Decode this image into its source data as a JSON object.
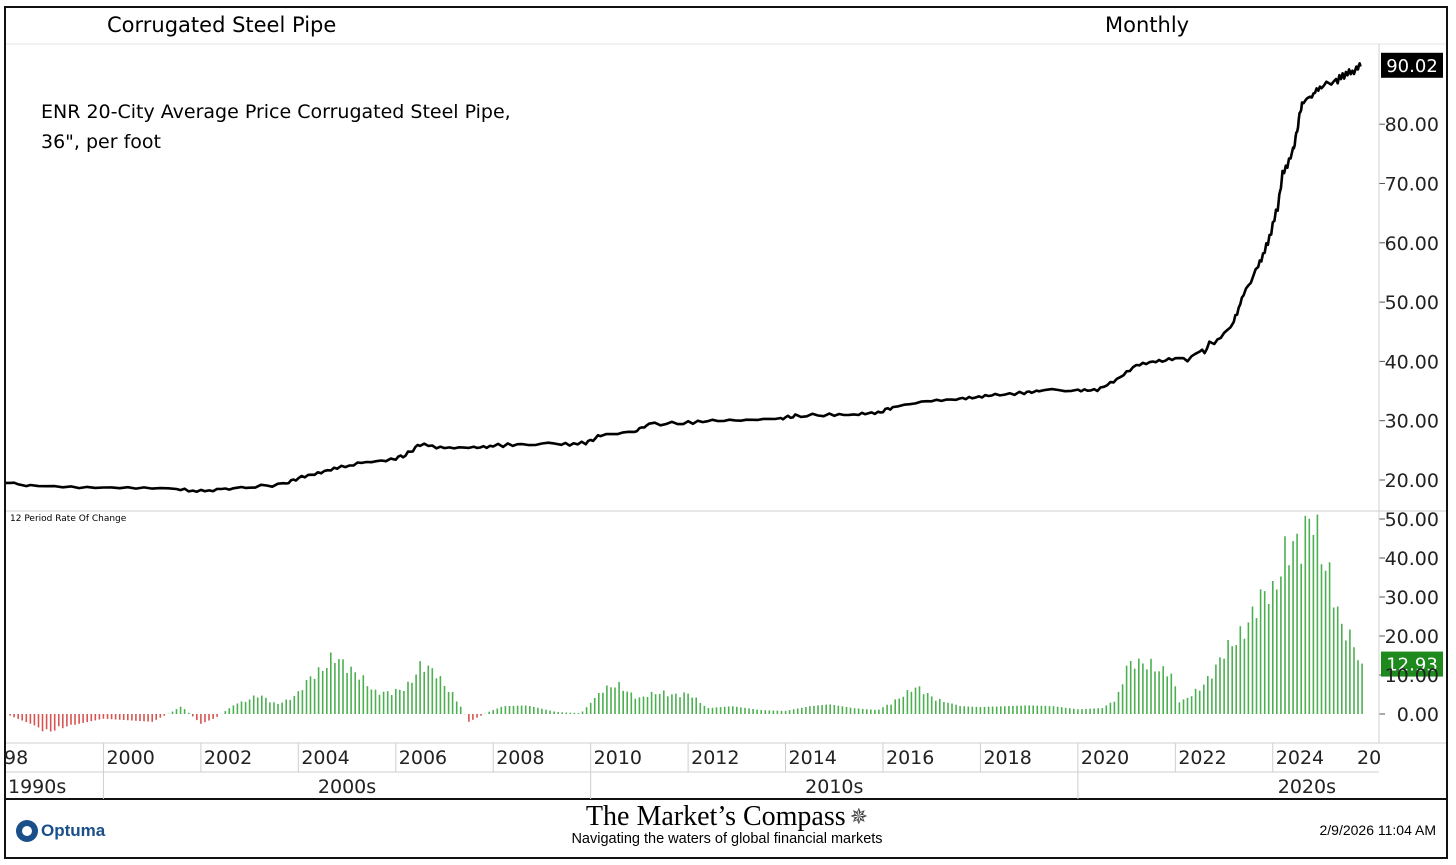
{
  "header": {
    "title": "Corrugated Steel Pipe",
    "period": "Monthly"
  },
  "description": {
    "line1": "ENR 20-City Average Price Corrugated Steel Pipe,",
    "line2": "36\", per foot"
  },
  "indicator_label": "12 Period Rate Of Change",
  "footer": {
    "vendor": "Optuma",
    "brand_title": "The Market’s Compass",
    "brand_subtitle": "Navigating the waters of global financial markets",
    "timestamp": "2/9/2026 11:04 AM",
    "vendor_icon": "optuma-logo-icon",
    "brand_icon": "compass-icon"
  },
  "chart_data": [
    {
      "type": "line",
      "title": "ENR 20-City Average Price Corrugated Steel Pipe, 36\", per foot",
      "ylim": [
        16,
        92
      ],
      "yticks": [
        "20.00",
        "30.00",
        "40.00",
        "50.00",
        "60.00",
        "70.00",
        "80.00"
      ],
      "last_value": 90.02,
      "last_value_label": "90.02",
      "color": "#000000",
      "points": [
        [
          1998.0,
          19.6
        ],
        [
          1998.5,
          19.0
        ],
        [
          1999.5,
          18.6
        ],
        [
          2000.5,
          18.5
        ],
        [
          2001.5,
          18.4
        ],
        [
          2002.0,
          18.1
        ],
        [
          2002.5,
          18.5
        ],
        [
          2003.0,
          18.8
        ],
        [
          2003.7,
          19.3
        ],
        [
          2004.0,
          20.3
        ],
        [
          2004.4,
          21.0
        ],
        [
          2004.8,
          22.0
        ],
        [
          2005.3,
          22.9
        ],
        [
          2005.9,
          23.4
        ],
        [
          2006.2,
          24.2
        ],
        [
          2006.5,
          26.0
        ],
        [
          2007.0,
          25.4
        ],
        [
          2007.6,
          25.5
        ],
        [
          2008.0,
          25.8
        ],
        [
          2008.6,
          26.0
        ],
        [
          2009.4,
          26.0
        ],
        [
          2009.9,
          26.2
        ],
        [
          2010.2,
          27.5
        ],
        [
          2010.9,
          28.2
        ],
        [
          2011.2,
          29.4
        ],
        [
          2011.9,
          29.6
        ],
        [
          2012.5,
          30.0
        ],
        [
          2013.2,
          30.1
        ],
        [
          2013.9,
          30.4
        ],
        [
          2014.2,
          30.8
        ],
        [
          2014.9,
          31.0
        ],
        [
          2015.5,
          31.0
        ],
        [
          2015.9,
          31.3
        ],
        [
          2016.2,
          32.3
        ],
        [
          2016.9,
          33.3
        ],
        [
          2017.5,
          33.6
        ],
        [
          2017.9,
          33.8
        ],
        [
          2018.3,
          34.3
        ],
        [
          2018.9,
          34.7
        ],
        [
          2019.2,
          35.0
        ],
        [
          2020.0,
          35.2
        ],
        [
          2020.4,
          35.3
        ],
        [
          2020.8,
          37.0
        ],
        [
          2021.2,
          39.3
        ],
        [
          2021.6,
          39.9
        ],
        [
          2022.0,
          40.1
        ],
        [
          2022.5,
          41.2
        ],
        [
          2022.8,
          43.5
        ],
        [
          2023.2,
          46.8
        ],
        [
          2023.4,
          51.2
        ],
        [
          2023.7,
          56.0
        ],
        [
          2023.9,
          60.0
        ],
        [
          2024.1,
          66.0
        ],
        [
          2024.2,
          71.5
        ],
        [
          2024.4,
          75.0
        ],
        [
          2024.5,
          79.0
        ],
        [
          2024.6,
          83.6
        ],
        [
          2024.8,
          84.8
        ],
        [
          2025.0,
          86.5
        ],
        [
          2025.3,
          87.3
        ],
        [
          2025.5,
          88.5
        ],
        [
          2025.7,
          89.0
        ],
        [
          2025.8,
          90.02
        ]
      ]
    },
    {
      "type": "bar",
      "title": "12 Period Rate Of Change",
      "ylim": [
        -8,
        52
      ],
      "yticks": [
        "0.00",
        "10.00",
        "20.00",
        "30.00",
        "40.00",
        "50.00"
      ],
      "last_value": 12.93,
      "last_value_label": "12.93",
      "positive_color": "#4caf50",
      "negative_color": "#d9534f",
      "profile": [
        [
          1998.0,
          0.0
        ],
        [
          1998.4,
          -2.0
        ],
        [
          1998.9,
          -4.5
        ],
        [
          1999.5,
          -2.5
        ],
        [
          2000.0,
          -1.2
        ],
        [
          2001.0,
          -2.0
        ],
        [
          2001.4,
          0.5
        ],
        [
          2001.6,
          2.0
        ],
        [
          2002.0,
          -2.5
        ],
        [
          2002.3,
          -1.0
        ],
        [
          2002.7,
          2.5
        ],
        [
          2003.2,
          4.5
        ],
        [
          2003.6,
          2.5
        ],
        [
          2004.0,
          5.0
        ],
        [
          2004.3,
          10.0
        ],
        [
          2004.7,
          15.0
        ],
        [
          2005.0,
          11.0
        ],
        [
          2005.3,
          10.0
        ],
        [
          2005.6,
          5.5
        ],
        [
          2005.9,
          5.0
        ],
        [
          2006.2,
          7.0
        ],
        [
          2006.5,
          12.5
        ],
        [
          2006.8,
          10.0
        ],
        [
          2007.2,
          5.0
        ],
        [
          2007.5,
          -2.0
        ],
        [
          2007.9,
          0.5
        ],
        [
          2008.2,
          2.0
        ],
        [
          2008.7,
          2.2
        ],
        [
          2009.3,
          0.5
        ],
        [
          2009.8,
          0.2
        ],
        [
          2010.2,
          5.5
        ],
        [
          2010.6,
          7.5
        ],
        [
          2011.0,
          4.0
        ],
        [
          2011.5,
          5.5
        ],
        [
          2012.0,
          5.0
        ],
        [
          2012.4,
          1.5
        ],
        [
          2012.9,
          2.0
        ],
        [
          2013.5,
          1.0
        ],
        [
          2014.0,
          0.8
        ],
        [
          2014.5,
          2.0
        ],
        [
          2014.9,
          2.5
        ],
        [
          2015.4,
          1.5
        ],
        [
          2015.9,
          1.0
        ],
        [
          2016.3,
          4.0
        ],
        [
          2016.7,
          6.5
        ],
        [
          2017.2,
          3.5
        ],
        [
          2017.6,
          2.0
        ],
        [
          2018.0,
          1.8
        ],
        [
          2018.5,
          2.0
        ],
        [
          2019.0,
          2.2
        ],
        [
          2019.5,
          2.0
        ],
        [
          2020.0,
          1.2
        ],
        [
          2020.5,
          1.5
        ],
        [
          2020.8,
          4.0
        ],
        [
          2021.0,
          11.5
        ],
        [
          2021.5,
          13.5
        ],
        [
          2021.9,
          10.0
        ],
        [
          2022.1,
          2.5
        ],
        [
          2022.4,
          6.0
        ],
        [
          2022.8,
          10.5
        ],
        [
          2023.1,
          17.0
        ],
        [
          2023.4,
          23.0
        ],
        [
          2023.8,
          28.5
        ],
        [
          2024.0,
          30.0
        ],
        [
          2024.3,
          47.0
        ],
        [
          2024.6,
          41.0
        ],
        [
          2024.8,
          48.5
        ],
        [
          2025.0,
          43.0
        ],
        [
          2025.2,
          37.0
        ],
        [
          2025.4,
          22.0
        ],
        [
          2025.6,
          18.0
        ],
        [
          2025.8,
          12.93
        ]
      ]
    }
  ],
  "x_axis": {
    "year_ticks": [
      "98",
      "2000",
      "2002",
      "2004",
      "2006",
      "2008",
      "2010",
      "2012",
      "2014",
      "2016",
      "2018",
      "2020",
      "2022",
      "2024",
      "20"
    ],
    "decades": [
      "1990s",
      "2000s",
      "2010s",
      "2020s"
    ]
  }
}
